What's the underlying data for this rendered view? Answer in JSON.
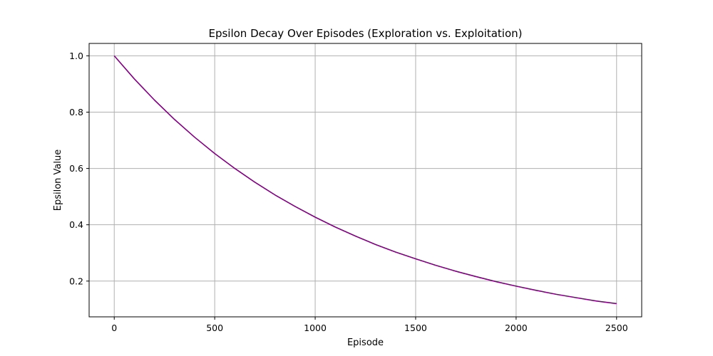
{
  "chart_data": {
    "type": "line",
    "title": "Epsilon Decay Over Episodes (Exploration vs. Exploitation)",
    "xlabel": "Episode",
    "ylabel": "Epsilon Value",
    "xlim": [
      -125,
      2625
    ],
    "ylim": [
      0.073,
      1.044
    ],
    "xticks": [
      0,
      500,
      1000,
      1500,
      2000,
      2500
    ],
    "xtick_labels": [
      "0",
      "500",
      "1000",
      "1500",
      "2000",
      "2500"
    ],
    "yticks": [
      0.2,
      0.4,
      0.6,
      0.8,
      1.0
    ],
    "ytick_labels": [
      "0.2",
      "0.4",
      "0.6",
      "0.8",
      "1.0"
    ],
    "grid": true,
    "series": [
      {
        "color": "#800080",
        "x": [
          0,
          100,
          200,
          300,
          400,
          500,
          600,
          700,
          800,
          900,
          1000,
          1100,
          1200,
          1300,
          1400,
          1500,
          1600,
          1700,
          1800,
          1900,
          2000,
          2100,
          2200,
          2300,
          2400,
          2500
        ],
        "y": [
          1.0,
          0.918,
          0.843,
          0.774,
          0.711,
          0.653,
          0.6,
          0.551,
          0.506,
          0.465,
          0.427,
          0.392,
          0.36,
          0.33,
          0.303,
          0.279,
          0.256,
          0.235,
          0.216,
          0.198,
          0.182,
          0.167,
          0.153,
          0.141,
          0.129,
          0.12
        ]
      }
    ]
  }
}
